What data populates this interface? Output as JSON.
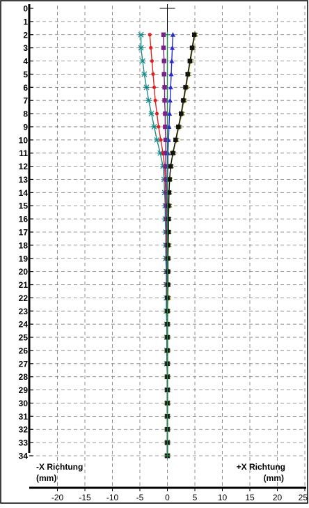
{
  "chart_data": {
    "type": "line",
    "orientation": "depth-vertical",
    "x_axis": {
      "ticks": [
        -20,
        -15,
        -10,
        -5,
        0,
        5,
        10,
        15,
        20,
        25
      ],
      "xlim": [
        -25,
        25
      ]
    },
    "y_axis": {
      "ticks": [
        0,
        1,
        2,
        3,
        4,
        5,
        6,
        7,
        8,
        9,
        10,
        11,
        12,
        13,
        14,
        15,
        16,
        17,
        18,
        19,
        20,
        21,
        22,
        23,
        24,
        25,
        26,
        27,
        28,
        29,
        30,
        31,
        32,
        33,
        34
      ],
      "ylim": [
        0,
        34
      ],
      "inverted": true
    },
    "annotations": {
      "left_direction": "-X Richtung",
      "left_unit": "(mm)",
      "right_direction": "+X Richtung",
      "right_unit": "(mm)"
    },
    "grid": true,
    "series": [
      {
        "color": "#1a8a8a",
        "marker": "x",
        "points": [
          [
            -4.8,
            2
          ],
          [
            -4.8,
            3
          ],
          [
            -4.5,
            4
          ],
          [
            -4.2,
            5
          ],
          [
            -3.8,
            6
          ],
          [
            -3.4,
            7
          ],
          [
            -2.9,
            8
          ],
          [
            -2.4,
            9
          ],
          [
            -1.9,
            10
          ],
          [
            -1.3,
            11
          ],
          [
            -0.8,
            12
          ],
          [
            -0.6,
            13
          ],
          [
            -0.5,
            14
          ],
          [
            -0.4,
            15
          ],
          [
            -0.4,
            16
          ],
          [
            -0.3,
            17
          ],
          [
            -0.3,
            18
          ],
          [
            -0.3,
            19
          ],
          [
            -0.2,
            20
          ],
          [
            -0.2,
            21
          ],
          [
            -0.2,
            22
          ],
          [
            -0.2,
            23
          ],
          [
            -0.1,
            24
          ],
          [
            -0.1,
            25
          ],
          [
            -0.1,
            26
          ],
          [
            -0.1,
            27
          ],
          [
            0,
            28
          ],
          [
            0,
            29
          ],
          [
            0,
            30
          ],
          [
            0,
            31
          ],
          [
            0,
            32
          ],
          [
            0,
            33
          ],
          [
            0,
            34
          ]
        ]
      },
      {
        "color": "#e02020",
        "marker": "dot",
        "points": [
          [
            -3.2,
            2
          ],
          [
            -3.0,
            3
          ],
          [
            -2.8,
            4
          ],
          [
            -2.6,
            5
          ],
          [
            -2.4,
            6
          ],
          [
            -2.2,
            7
          ],
          [
            -1.9,
            8
          ],
          [
            -1.6,
            9
          ],
          [
            -1.2,
            10
          ],
          [
            -0.8,
            11
          ],
          [
            -0.5,
            12
          ],
          [
            -0.4,
            13
          ],
          [
            -0.3,
            14
          ],
          [
            -0.3,
            15
          ],
          [
            -0.2,
            16
          ],
          [
            -0.2,
            17
          ],
          [
            -0.2,
            18
          ],
          [
            -0.1,
            19
          ],
          [
            -0.1,
            20
          ],
          [
            -0.1,
            21
          ],
          [
            -0.1,
            22
          ],
          [
            0,
            23
          ],
          [
            0,
            24
          ],
          [
            0,
            25
          ],
          [
            0,
            26
          ],
          [
            0,
            27
          ],
          [
            0,
            28
          ],
          [
            0,
            29
          ],
          [
            0,
            30
          ],
          [
            0,
            31
          ],
          [
            0,
            32
          ],
          [
            0,
            33
          ],
          [
            0,
            34
          ]
        ]
      },
      {
        "color": "#7a1f8a",
        "marker": "square",
        "points": [
          [
            -0.7,
            2
          ],
          [
            -0.7,
            3
          ],
          [
            -0.6,
            4
          ],
          [
            -0.6,
            5
          ],
          [
            -0.5,
            6
          ],
          [
            -0.5,
            7
          ],
          [
            -0.4,
            8
          ],
          [
            -0.4,
            9
          ],
          [
            -0.3,
            10
          ],
          [
            -0.3,
            11
          ],
          [
            -0.3,
            12
          ],
          [
            -0.2,
            13
          ],
          [
            -0.2,
            14
          ],
          [
            -0.2,
            15
          ],
          [
            -0.2,
            16
          ],
          [
            -0.1,
            17
          ],
          [
            -0.1,
            18
          ],
          [
            -0.1,
            19
          ],
          [
            -0.1,
            20
          ],
          [
            -0.1,
            21
          ],
          [
            0,
            22
          ],
          [
            0,
            23
          ],
          [
            0,
            24
          ],
          [
            0,
            25
          ],
          [
            0,
            26
          ],
          [
            0,
            27
          ],
          [
            0,
            28
          ],
          [
            0,
            29
          ],
          [
            0,
            30
          ],
          [
            0,
            31
          ],
          [
            0,
            32
          ],
          [
            0,
            33
          ],
          [
            0,
            34
          ]
        ]
      },
      {
        "color": "#2a2ad0",
        "marker": "triangle",
        "points": [
          [
            1.0,
            2
          ],
          [
            0.9,
            3
          ],
          [
            0.8,
            4
          ],
          [
            0.7,
            5
          ],
          [
            0.6,
            6
          ],
          [
            0.5,
            7
          ],
          [
            0.4,
            8
          ],
          [
            0.3,
            9
          ],
          [
            0.2,
            10
          ],
          [
            0.1,
            11
          ],
          [
            0.1,
            12
          ],
          [
            0,
            13
          ],
          [
            0,
            14
          ],
          [
            0,
            15
          ],
          [
            0,
            16
          ],
          [
            0,
            17
          ],
          [
            0,
            18
          ],
          [
            0,
            19
          ],
          [
            0,
            20
          ],
          [
            0,
            21
          ],
          [
            0,
            22
          ],
          [
            0,
            23
          ],
          [
            0,
            24
          ],
          [
            0,
            25
          ],
          [
            0,
            26
          ],
          [
            0,
            27
          ],
          [
            0,
            28
          ],
          [
            0,
            29
          ],
          [
            0,
            30
          ],
          [
            0,
            31
          ],
          [
            0,
            32
          ],
          [
            0,
            33
          ],
          [
            0,
            34
          ]
        ]
      },
      {
        "color": "#8c8c10",
        "marker": "star",
        "points": [
          [
            5.0,
            2
          ],
          [
            4.6,
            3
          ],
          [
            4.2,
            4
          ],
          [
            3.8,
            5
          ],
          [
            3.4,
            6
          ],
          [
            3.0,
            7
          ],
          [
            2.6,
            8
          ],
          [
            2.1,
            9
          ],
          [
            1.6,
            10
          ],
          [
            1.0,
            11
          ],
          [
            0.6,
            12
          ],
          [
            0.4,
            13
          ],
          [
            0.3,
            14
          ],
          [
            0.3,
            15
          ],
          [
            0.2,
            16
          ],
          [
            0.2,
            17
          ],
          [
            0.2,
            18
          ],
          [
            0.1,
            19
          ],
          [
            0.1,
            20
          ],
          [
            0.1,
            21
          ],
          [
            0.1,
            22
          ],
          [
            0,
            23
          ],
          [
            0,
            24
          ],
          [
            0,
            25
          ],
          [
            0,
            26
          ],
          [
            0,
            27
          ],
          [
            0,
            28
          ],
          [
            0,
            29
          ],
          [
            0,
            30
          ],
          [
            0,
            31
          ],
          [
            0,
            32
          ],
          [
            0,
            33
          ],
          [
            0,
            34
          ]
        ]
      },
      {
        "color": "#111111",
        "marker": "square",
        "points": [
          [
            4.9,
            2
          ],
          [
            4.5,
            3
          ],
          [
            4.1,
            4
          ],
          [
            3.7,
            5
          ],
          [
            3.3,
            6
          ],
          [
            2.9,
            7
          ],
          [
            2.5,
            8
          ],
          [
            2.0,
            9
          ],
          [
            1.5,
            10
          ],
          [
            1.0,
            11
          ],
          [
            0.6,
            12
          ],
          [
            0.4,
            13
          ],
          [
            0.3,
            14
          ],
          [
            0.2,
            15
          ],
          [
            0.2,
            16
          ],
          [
            0.2,
            17
          ],
          [
            0.1,
            18
          ],
          [
            0.1,
            19
          ],
          [
            0.1,
            20
          ],
          [
            0.1,
            21
          ],
          [
            0,
            22
          ],
          [
            0,
            23
          ],
          [
            0,
            24
          ],
          [
            0,
            25
          ],
          [
            0,
            26
          ],
          [
            0,
            27
          ],
          [
            0,
            28
          ],
          [
            0,
            29
          ],
          [
            0,
            30
          ],
          [
            0,
            31
          ],
          [
            0,
            32
          ],
          [
            0,
            33
          ],
          [
            0,
            34
          ]
        ]
      },
      {
        "color": "#1a8a4a",
        "marker": "plus",
        "points": [
          [
            0,
            2
          ],
          [
            0,
            34
          ]
        ]
      }
    ]
  }
}
